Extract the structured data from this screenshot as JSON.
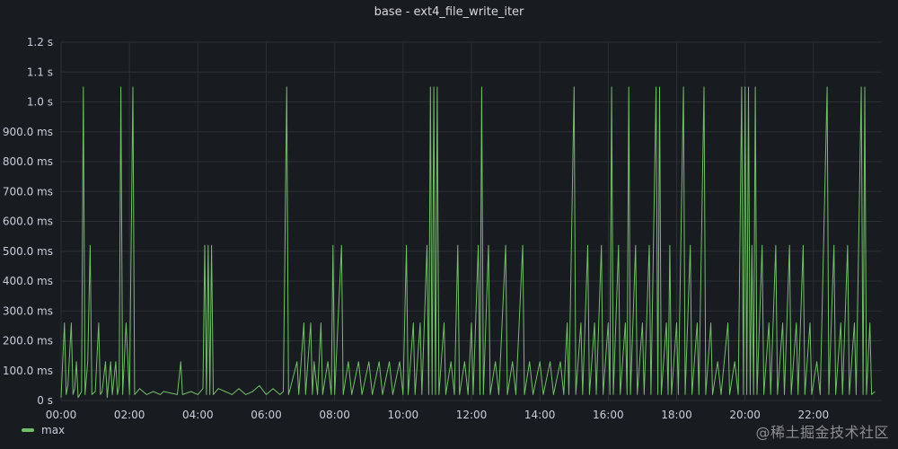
{
  "panel": {
    "title": "base - ext4_file_write_iter",
    "watermark": "@稀土掘金技术社区"
  },
  "colors": {
    "background": "#181b1f",
    "grid": "#2c3035",
    "series": "#73bf69",
    "axis_text": "#ccccdc"
  },
  "chart_data": {
    "type": "line",
    "title": "base - ext4_file_write_iter",
    "xlabel": "",
    "ylabel": "",
    "x_unit": "hours",
    "xlim": [
      0,
      24
    ],
    "ylim": [
      0,
      1.2
    ],
    "y_unit": "s",
    "x_ticks": [
      {
        "value": 0,
        "label": "00:00"
      },
      {
        "value": 2,
        "label": "02:00"
      },
      {
        "value": 4,
        "label": "04:00"
      },
      {
        "value": 6,
        "label": "06:00"
      },
      {
        "value": 8,
        "label": "08:00"
      },
      {
        "value": 10,
        "label": "10:00"
      },
      {
        "value": 12,
        "label": "12:00"
      },
      {
        "value": 14,
        "label": "14:00"
      },
      {
        "value": 16,
        "label": "16:00"
      },
      {
        "value": 18,
        "label": "18:00"
      },
      {
        "value": 20,
        "label": "20:00"
      },
      {
        "value": 22,
        "label": "22:00"
      }
    ],
    "y_ticks": [
      {
        "value": 0,
        "label": "0 s"
      },
      {
        "value": 0.1,
        "label": "100.0 ms"
      },
      {
        "value": 0.2,
        "label": "200.0 ms"
      },
      {
        "value": 0.3,
        "label": "300.0 ms"
      },
      {
        "value": 0.4,
        "label": "400.0 ms"
      },
      {
        "value": 0.5,
        "label": "500.0 ms"
      },
      {
        "value": 0.6,
        "label": "600.0 ms"
      },
      {
        "value": 0.7,
        "label": "700.0 ms"
      },
      {
        "value": 0.8,
        "label": "800.0 ms"
      },
      {
        "value": 0.9,
        "label": "900.0 ms"
      },
      {
        "value": 1.0,
        "label": "1.0 s"
      },
      {
        "value": 1.1,
        "label": "1.1 s"
      },
      {
        "value": 1.2,
        "label": "1.2 s"
      }
    ],
    "grid": true,
    "legend_position": "bottom-left",
    "series": [
      {
        "name": "max",
        "color": "#73bf69",
        "points": [
          [
            0.0,
            0.01
          ],
          [
            0.1,
            0.26
          ],
          [
            0.15,
            0.02
          ],
          [
            0.2,
            0.05
          ],
          [
            0.3,
            0.26
          ],
          [
            0.35,
            0.02
          ],
          [
            0.4,
            0.04
          ],
          [
            0.45,
            0.13
          ],
          [
            0.5,
            0.01
          ],
          [
            0.6,
            0.03
          ],
          [
            0.65,
            1.05
          ],
          [
            0.7,
            0.02
          ],
          [
            0.78,
            0.13
          ],
          [
            0.85,
            0.52
          ],
          [
            0.9,
            0.02
          ],
          [
            1.0,
            0.03
          ],
          [
            1.1,
            0.26
          ],
          [
            1.15,
            0.02
          ],
          [
            1.2,
            0.03
          ],
          [
            1.3,
            0.13
          ],
          [
            1.35,
            0.01
          ],
          [
            1.45,
            0.13
          ],
          [
            1.5,
            0.02
          ],
          [
            1.6,
            0.13
          ],
          [
            1.65,
            0.02
          ],
          [
            1.7,
            0.05
          ],
          [
            1.75,
            1.05
          ],
          [
            1.8,
            0.02
          ],
          [
            1.9,
            0.26
          ],
          [
            2.0,
            0.02
          ],
          [
            2.1,
            1.05
          ],
          [
            2.15,
            0.02
          ],
          [
            2.3,
            0.04
          ],
          [
            2.5,
            0.02
          ],
          [
            2.7,
            0.03
          ],
          [
            2.9,
            0.02
          ],
          [
            3.0,
            0.03
          ],
          [
            3.4,
            0.02
          ],
          [
            3.5,
            0.13
          ],
          [
            3.55,
            0.02
          ],
          [
            3.8,
            0.03
          ],
          [
            4.0,
            0.02
          ],
          [
            4.15,
            0.04
          ],
          [
            4.2,
            0.52
          ],
          [
            4.25,
            0.02
          ],
          [
            4.3,
            0.52
          ],
          [
            4.35,
            0.02
          ],
          [
            4.4,
            0.52
          ],
          [
            4.45,
            0.02
          ],
          [
            4.6,
            0.04
          ],
          [
            4.8,
            0.03
          ],
          [
            5.0,
            0.02
          ],
          [
            5.2,
            0.04
          ],
          [
            5.4,
            0.02
          ],
          [
            5.6,
            0.03
          ],
          [
            5.8,
            0.05
          ],
          [
            6.0,
            0.02
          ],
          [
            6.2,
            0.04
          ],
          [
            6.4,
            0.02
          ],
          [
            6.5,
            0.03
          ],
          [
            6.6,
            1.05
          ],
          [
            6.65,
            0.02
          ],
          [
            6.7,
            0.04
          ],
          [
            6.9,
            0.13
          ],
          [
            6.95,
            0.02
          ],
          [
            7.1,
            0.26
          ],
          [
            7.15,
            0.02
          ],
          [
            7.3,
            0.26
          ],
          [
            7.35,
            0.02
          ],
          [
            7.4,
            0.13
          ],
          [
            7.5,
            0.02
          ],
          [
            7.6,
            0.26
          ],
          [
            7.65,
            0.02
          ],
          [
            7.8,
            0.13
          ],
          [
            7.9,
            0.02
          ],
          [
            7.95,
            0.52
          ],
          [
            8.0,
            0.02
          ],
          [
            8.2,
            0.52
          ],
          [
            8.25,
            0.02
          ],
          [
            8.4,
            0.13
          ],
          [
            8.5,
            0.02
          ],
          [
            8.7,
            0.13
          ],
          [
            8.8,
            0.02
          ],
          [
            9.0,
            0.13
          ],
          [
            9.1,
            0.02
          ],
          [
            9.3,
            0.13
          ],
          [
            9.4,
            0.02
          ],
          [
            9.6,
            0.13
          ],
          [
            9.7,
            0.02
          ],
          [
            9.9,
            0.13
          ],
          [
            10.0,
            0.02
          ],
          [
            10.1,
            0.52
          ],
          [
            10.15,
            0.02
          ],
          [
            10.3,
            0.26
          ],
          [
            10.35,
            0.02
          ],
          [
            10.5,
            0.26
          ],
          [
            10.55,
            0.02
          ],
          [
            10.7,
            0.52
          ],
          [
            10.75,
            0.02
          ],
          [
            10.8,
            1.05
          ],
          [
            10.85,
            0.02
          ],
          [
            10.9,
            1.05
          ],
          [
            10.95,
            0.02
          ],
          [
            11.0,
            1.05
          ],
          [
            11.05,
            0.02
          ],
          [
            11.2,
            0.26
          ],
          [
            11.25,
            0.02
          ],
          [
            11.4,
            0.13
          ],
          [
            11.5,
            0.02
          ],
          [
            11.6,
            0.52
          ],
          [
            11.65,
            0.02
          ],
          [
            11.8,
            0.13
          ],
          [
            11.9,
            0.02
          ],
          [
            12.0,
            0.26
          ],
          [
            12.05,
            0.02
          ],
          [
            12.2,
            0.52
          ],
          [
            12.25,
            0.02
          ],
          [
            12.3,
            1.05
          ],
          [
            12.35,
            0.02
          ],
          [
            12.5,
            0.52
          ],
          [
            12.55,
            0.02
          ],
          [
            12.7,
            0.13
          ],
          [
            12.8,
            0.02
          ],
          [
            13.0,
            0.52
          ],
          [
            13.05,
            0.02
          ],
          [
            13.2,
            0.13
          ],
          [
            13.3,
            0.02
          ],
          [
            13.5,
            0.52
          ],
          [
            13.55,
            0.02
          ],
          [
            13.7,
            0.13
          ],
          [
            13.8,
            0.02
          ],
          [
            14.0,
            0.13
          ],
          [
            14.1,
            0.02
          ],
          [
            14.3,
            0.13
          ],
          [
            14.4,
            0.02
          ],
          [
            14.6,
            0.13
          ],
          [
            14.7,
            0.02
          ],
          [
            14.8,
            0.26
          ],
          [
            14.85,
            0.02
          ],
          [
            15.0,
            1.05
          ],
          [
            15.05,
            0.02
          ],
          [
            15.2,
            0.26
          ],
          [
            15.25,
            0.02
          ],
          [
            15.4,
            0.52
          ],
          [
            15.45,
            0.02
          ],
          [
            15.6,
            0.26
          ],
          [
            15.65,
            0.02
          ],
          [
            15.8,
            0.52
          ],
          [
            15.85,
            0.02
          ],
          [
            16.0,
            0.26
          ],
          [
            16.05,
            0.02
          ],
          [
            16.1,
            1.05
          ],
          [
            16.15,
            0.02
          ],
          [
            16.3,
            0.52
          ],
          [
            16.35,
            0.02
          ],
          [
            16.5,
            0.26
          ],
          [
            16.55,
            0.02
          ],
          [
            16.6,
            1.05
          ],
          [
            16.65,
            0.02
          ],
          [
            16.8,
            0.52
          ],
          [
            16.85,
            0.02
          ],
          [
            17.0,
            0.26
          ],
          [
            17.05,
            0.02
          ],
          [
            17.2,
            0.52
          ],
          [
            17.25,
            0.02
          ],
          [
            17.4,
            1.05
          ],
          [
            17.45,
            0.02
          ],
          [
            17.5,
            1.05
          ],
          [
            17.55,
            0.02
          ],
          [
            17.7,
            0.26
          ],
          [
            17.75,
            0.02
          ],
          [
            17.8,
            0.52
          ],
          [
            17.85,
            0.02
          ],
          [
            18.0,
            0.26
          ],
          [
            18.05,
            0.02
          ],
          [
            18.2,
            1.05
          ],
          [
            18.25,
            0.02
          ],
          [
            18.4,
            0.52
          ],
          [
            18.45,
            0.02
          ],
          [
            18.6,
            0.26
          ],
          [
            18.65,
            0.02
          ],
          [
            18.8,
            1.05
          ],
          [
            18.85,
            0.02
          ],
          [
            19.0,
            0.26
          ],
          [
            19.05,
            0.02
          ],
          [
            19.2,
            0.13
          ],
          [
            19.3,
            0.02
          ],
          [
            19.5,
            0.26
          ],
          [
            19.55,
            0.02
          ],
          [
            19.7,
            0.13
          ],
          [
            19.8,
            0.02
          ],
          [
            19.9,
            1.05
          ],
          [
            19.95,
            0.02
          ],
          [
            20.0,
            1.05
          ],
          [
            20.05,
            0.02
          ],
          [
            20.1,
            1.05
          ],
          [
            20.15,
            0.02
          ],
          [
            20.2,
            0.52
          ],
          [
            20.25,
            0.02
          ],
          [
            20.3,
            1.05
          ],
          [
            20.35,
            0.02
          ],
          [
            20.5,
            0.52
          ],
          [
            20.55,
            0.02
          ],
          [
            20.7,
            0.26
          ],
          [
            20.75,
            0.02
          ],
          [
            20.9,
            0.52
          ],
          [
            20.95,
            0.02
          ],
          [
            21.1,
            0.26
          ],
          [
            21.15,
            0.02
          ],
          [
            21.3,
            0.52
          ],
          [
            21.35,
            0.02
          ],
          [
            21.5,
            0.26
          ],
          [
            21.55,
            0.02
          ],
          [
            21.7,
            0.52
          ],
          [
            21.75,
            0.02
          ],
          [
            21.9,
            0.26
          ],
          [
            21.95,
            0.02
          ],
          [
            22.1,
            0.13
          ],
          [
            22.2,
            0.02
          ],
          [
            22.4,
            1.05
          ],
          [
            22.45,
            0.02
          ],
          [
            22.6,
            0.52
          ],
          [
            22.65,
            0.02
          ],
          [
            22.8,
            0.26
          ],
          [
            22.85,
            0.02
          ],
          [
            23.0,
            0.52
          ],
          [
            23.05,
            0.02
          ],
          [
            23.2,
            0.26
          ],
          [
            23.25,
            0.02
          ],
          [
            23.4,
            1.05
          ],
          [
            23.45,
            0.02
          ],
          [
            23.5,
            1.05
          ],
          [
            23.55,
            0.02
          ],
          [
            23.65,
            0.26
          ],
          [
            23.7,
            0.02
          ],
          [
            23.8,
            0.03
          ]
        ]
      }
    ]
  }
}
